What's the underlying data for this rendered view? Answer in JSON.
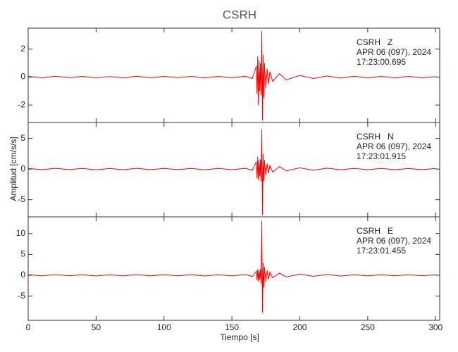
{
  "figure": {
    "title": "CSRH",
    "xlabel": "Tiempo [s]",
    "ylabel": "Amplitud [cm/s/s]"
  },
  "chart_data": [
    {
      "type": "line",
      "annotation": [
        "CSRH   Z",
        "APR 06 (097), 2024",
        "17:23:00.695"
      ],
      "x": [
        0,
        10,
        20,
        30,
        40,
        50,
        60,
        70,
        80,
        90,
        100,
        110,
        120,
        130,
        140,
        150,
        160,
        165,
        168,
        168.5,
        169,
        169.5,
        170,
        170.5,
        171,
        171.5,
        172,
        172.5,
        173,
        173.5,
        174,
        175,
        176,
        177,
        178,
        180,
        185,
        190,
        200,
        210,
        220,
        230,
        240,
        250,
        260,
        270,
        280,
        290,
        300
      ],
      "values": [
        0.05,
        -0.05,
        0.06,
        -0.04,
        0.05,
        -0.06,
        0.04,
        -0.05,
        0.06,
        -0.05,
        0.05,
        -0.04,
        0.05,
        -0.06,
        0.05,
        -0.05,
        0.06,
        -0.1,
        0.8,
        -1.2,
        1.5,
        -2.0,
        1.2,
        -1.0,
        1.0,
        -1.3,
        3.3,
        -3.1,
        1.6,
        -1.5,
        1.0,
        -0.8,
        0.6,
        -0.5,
        0.4,
        -0.3,
        0.25,
        -0.2,
        0.12,
        -0.1,
        0.08,
        -0.07,
        0.06,
        -0.06,
        0.05,
        -0.05,
        0.05,
        -0.05,
        0.04
      ],
      "color": "#ff0000",
      "xlim": [
        0,
        303
      ],
      "ylim": [
        -3.25,
        3.5
      ],
      "yticks": [
        -2,
        0,
        2
      ],
      "xticks": [
        0,
        50,
        100,
        150,
        200,
        250,
        300
      ]
    },
    {
      "type": "line",
      "annotation": [
        "CSRH   N",
        "APR 06 (097), 2024",
        "17:23:01.915"
      ],
      "x": [
        0,
        10,
        20,
        30,
        40,
        50,
        60,
        70,
        80,
        90,
        100,
        110,
        120,
        130,
        140,
        150,
        160,
        165,
        168,
        168.5,
        169,
        169.5,
        170,
        170.5,
        171,
        171.5,
        172,
        172.5,
        173,
        173.5,
        174,
        175,
        176,
        177,
        178,
        180,
        185,
        190,
        200,
        210,
        220,
        230,
        240,
        250,
        260,
        270,
        280,
        290,
        300
      ],
      "values": [
        0.1,
        -0.1,
        0.12,
        -0.09,
        0.1,
        -0.12,
        0.09,
        -0.1,
        0.12,
        -0.1,
        0.1,
        -0.09,
        0.1,
        -0.12,
        0.1,
        -0.1,
        0.12,
        -0.2,
        1.2,
        -1.5,
        2.0,
        -1.8,
        1.5,
        -1.2,
        1.6,
        -2.0,
        6.5,
        -7.5,
        2.5,
        -2.0,
        1.5,
        -1.0,
        0.9,
        -0.7,
        0.6,
        -0.5,
        0.4,
        -0.3,
        0.2,
        -0.2,
        0.15,
        -0.12,
        0.1,
        -0.1,
        0.1,
        -0.1,
        0.08,
        -0.08,
        0.08
      ],
      "color": "#ff0000",
      "xlim": [
        0,
        303
      ],
      "ylim": [
        -7.8,
        7.6
      ],
      "yticks": [
        -5,
        0,
        5
      ],
      "xticks": [
        0,
        50,
        100,
        150,
        200,
        250,
        300
      ]
    },
    {
      "type": "line",
      "annotation": [
        "CSRH   E",
        "APR 06 (097), 2024",
        "17:23:01.455"
      ],
      "x": [
        0,
        10,
        20,
        30,
        40,
        50,
        60,
        70,
        80,
        90,
        100,
        110,
        120,
        130,
        140,
        150,
        160,
        165,
        168,
        168.5,
        169,
        169.5,
        170,
        170.5,
        171,
        171.5,
        172,
        172.5,
        173,
        173.5,
        174,
        175,
        176,
        177,
        178,
        180,
        185,
        190,
        200,
        210,
        220,
        230,
        240,
        250,
        260,
        270,
        280,
        290,
        300
      ],
      "values": [
        0.15,
        -0.15,
        0.18,
        -0.13,
        0.15,
        -0.18,
        0.13,
        -0.15,
        0.18,
        -0.15,
        0.15,
        -0.13,
        0.15,
        -0.18,
        0.15,
        -0.15,
        0.18,
        -0.3,
        1.0,
        -1.2,
        1.5,
        -1.5,
        1.2,
        -1.0,
        1.5,
        -2.0,
        13,
        -9,
        3,
        -3,
        2,
        -1.5,
        1.2,
        -1.0,
        0.8,
        -0.6,
        0.5,
        -0.4,
        0.3,
        -0.25,
        0.2,
        -0.2,
        0.15,
        -0.15,
        0.15,
        -0.12,
        0.12,
        -0.1,
        0.1
      ],
      "color": "#ff0000",
      "xlim": [
        0,
        303
      ],
      "ylim": [
        -10.8,
        14
      ],
      "yticks": [
        -5,
        0,
        5,
        10
      ],
      "xticks": [
        0,
        50,
        100,
        150,
        200,
        250,
        300
      ]
    }
  ]
}
